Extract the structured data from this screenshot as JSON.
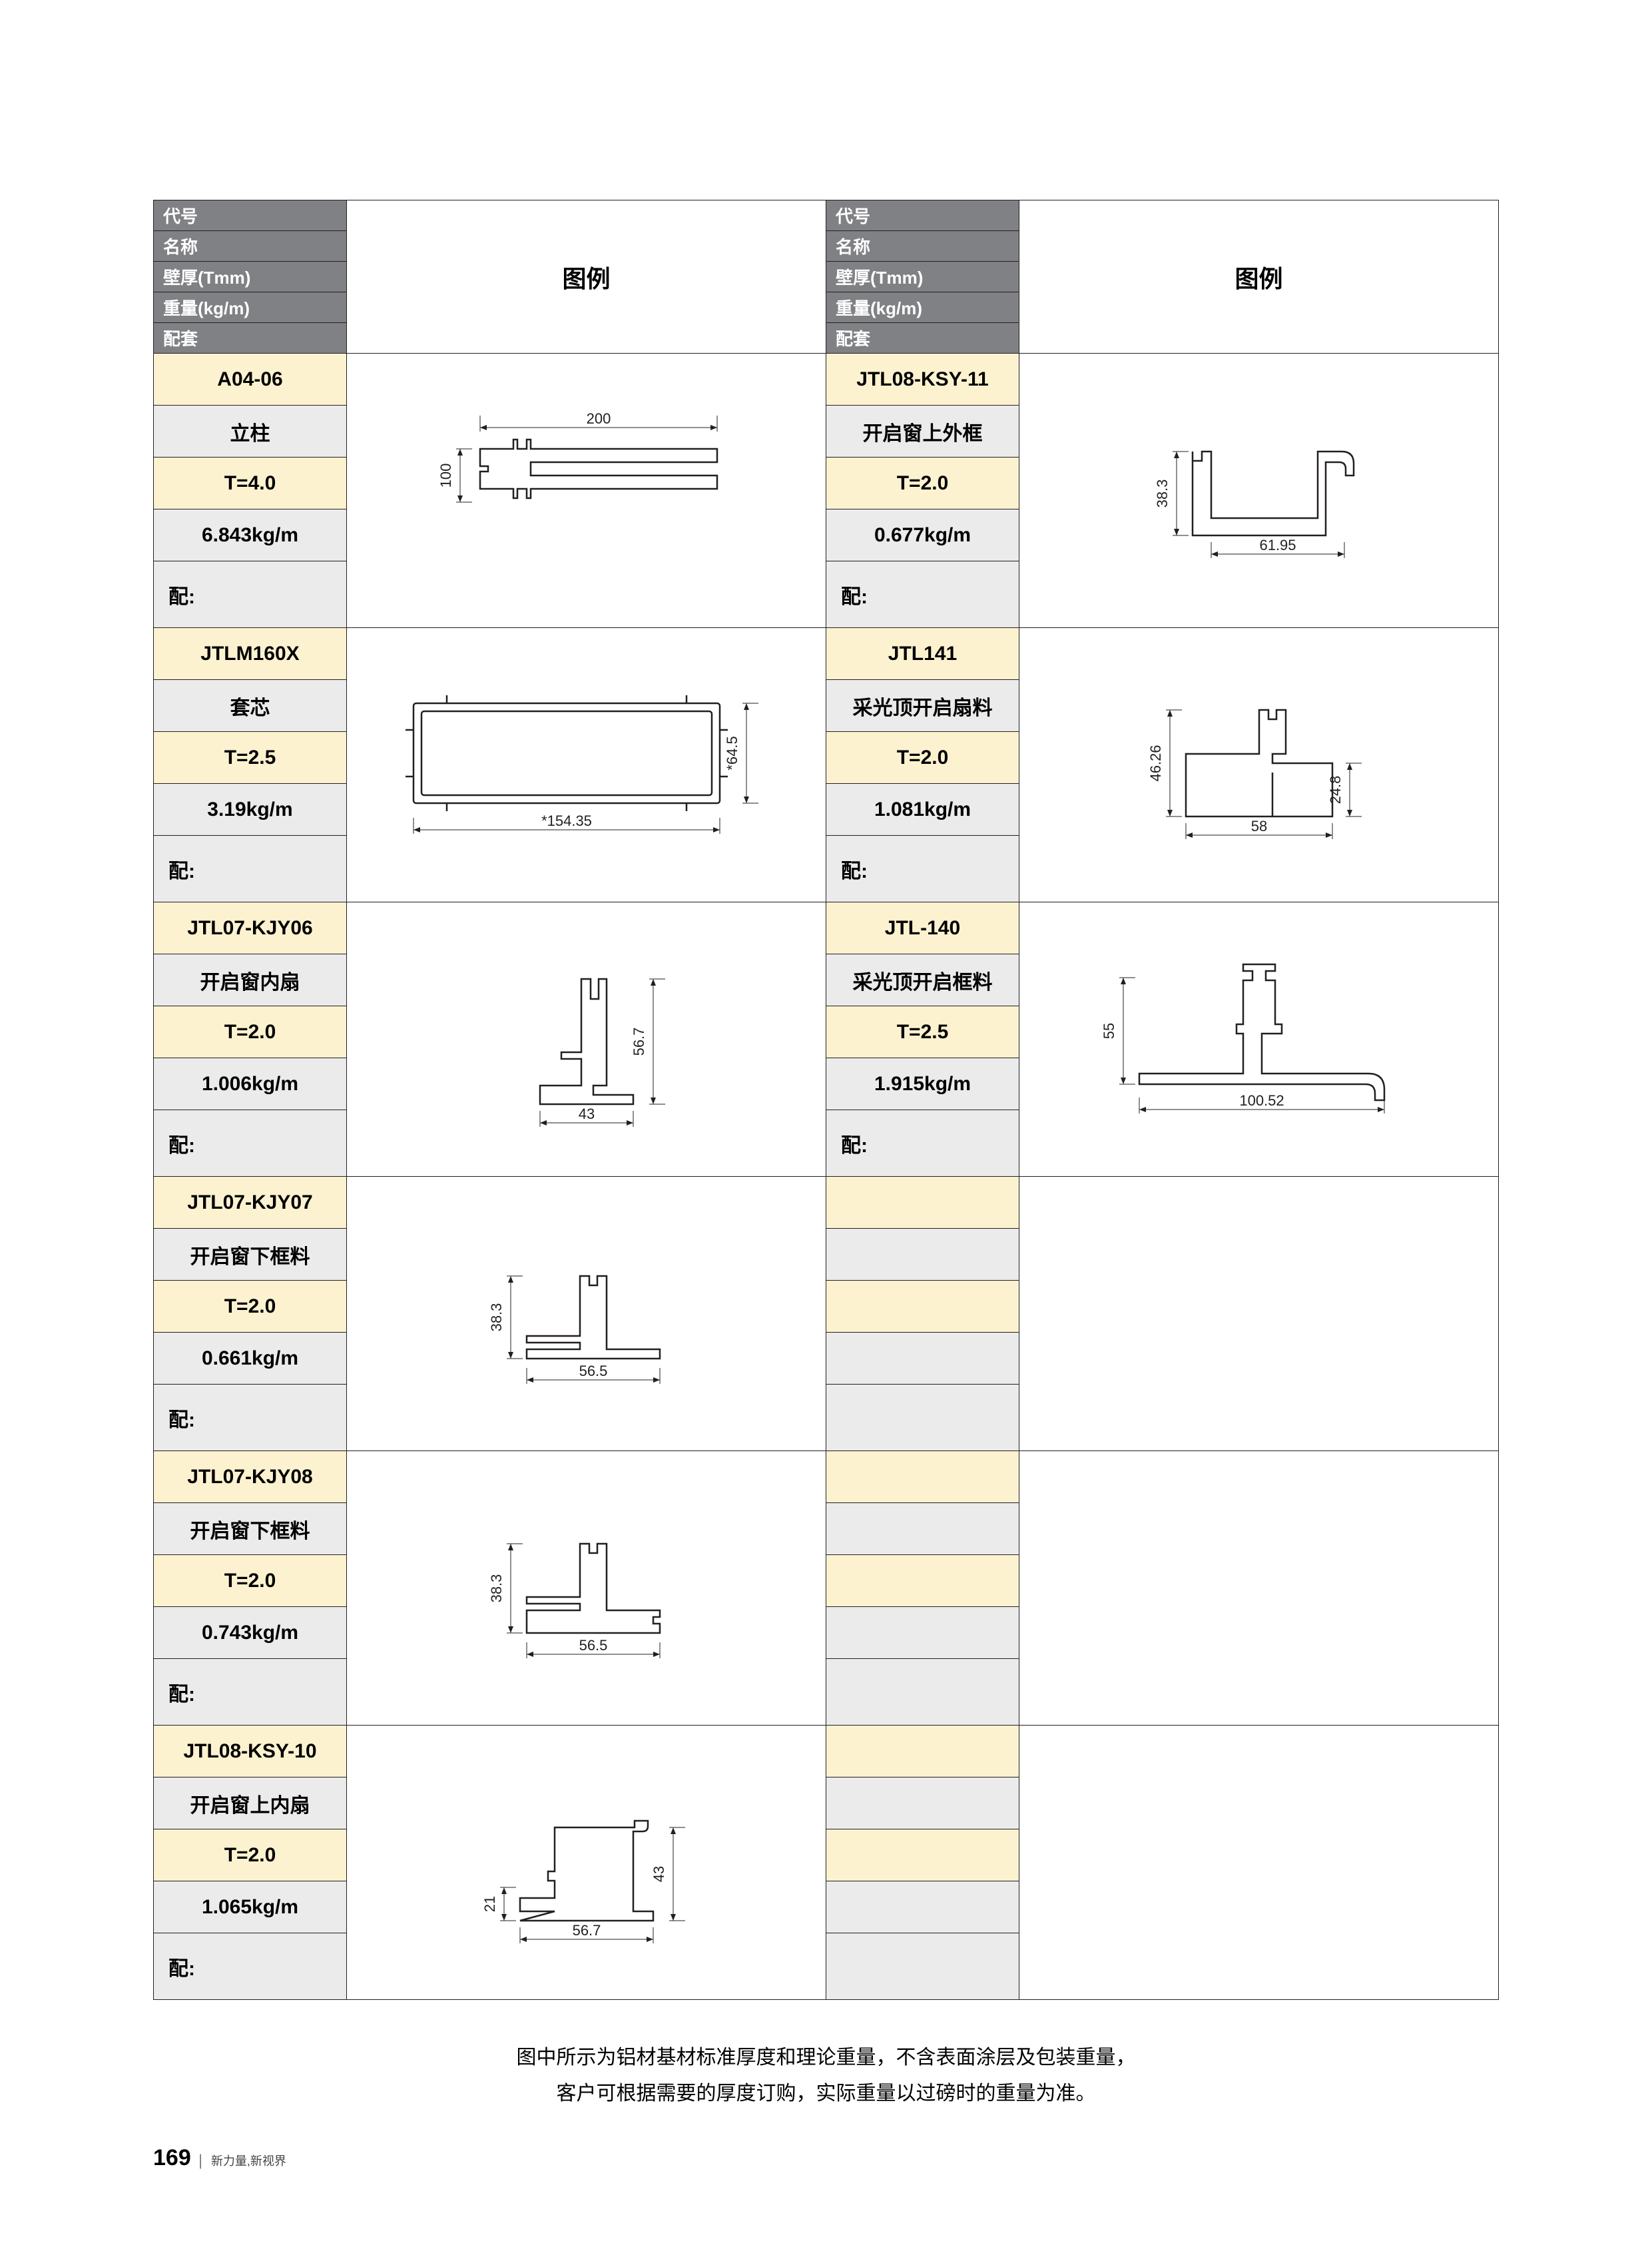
{
  "header_labels": {
    "code": "代号",
    "name": "名称",
    "thickness": "壁厚(Tmm)",
    "weight": "重量(kg/m)",
    "accessory": "配套",
    "legend": "图例"
  },
  "colors": {
    "header_bg": "#808184",
    "header_text": "#ffffff",
    "cream_bg": "#fcf2d0",
    "grey_bg": "#ebebeb",
    "border": "#231f20",
    "profile_stroke": "#231f20"
  },
  "left_rows": [
    {
      "code": "A04-06",
      "name": "立柱",
      "thickness": "T=4.0",
      "weight": "6.843kg/m",
      "accessory": "配:",
      "diagram": {
        "type": "T-post",
        "dim_w": "200",
        "dim_h": "100"
      }
    },
    {
      "code": "JTLM160X",
      "name": "套芯",
      "thickness": "T=2.5",
      "weight": "3.19kg/m",
      "accessory": "配:",
      "diagram": {
        "type": "rect-sleeve",
        "dim_w": "*154.35",
        "dim_h": "*64.5"
      }
    },
    {
      "code": "JTL07-KJY06",
      "name": "开启窗内扇",
      "thickness": "T=2.0",
      "weight": "1.006kg/m",
      "accessory": "配:",
      "diagram": {
        "type": "L-profile-a",
        "dim_w": "43",
        "dim_h": "56.7"
      }
    },
    {
      "code": "JTL07-KJY07",
      "name": "开启窗下框料",
      "thickness": "T=2.0",
      "weight": "0.661kg/m",
      "accessory": "配:",
      "diagram": {
        "type": "T-profile-a",
        "dim_w": "56.5",
        "dim_h": "38.3"
      }
    },
    {
      "code": "JTL07-KJY08",
      "name": "开启窗下框料",
      "thickness": "T=2.0",
      "weight": "0.743kg/m",
      "accessory": "配:",
      "diagram": {
        "type": "T-profile-b",
        "dim_w": "56.5",
        "dim_h": "38.3"
      }
    },
    {
      "code": "JTL08-KSY-10",
      "name": "开启窗上内扇",
      "thickness": "T=2.0",
      "weight": "1.065kg/m",
      "accessory": "配:",
      "diagram": {
        "type": "C-profile-a",
        "dim_w": "56.7",
        "dim_h": "43",
        "dim_h2": "21"
      }
    }
  ],
  "right_rows": [
    {
      "code": "JTL08-KSY-11",
      "name": "开启窗上外框",
      "thickness": "T=2.0",
      "weight": "0.677kg/m",
      "accessory": "配:",
      "diagram": {
        "type": "hook-profile",
        "dim_w": "61.95",
        "dim_h": "38.3"
      }
    },
    {
      "code": "JTL141",
      "name": "采光顶开启扇料",
      "thickness": "T=2.0",
      "weight": "1.081kg/m",
      "accessory": "配:",
      "diagram": {
        "type": "step-profile-a",
        "dim_w": "58",
        "dim_h": "46.26",
        "dim_h2": "24.8"
      }
    },
    {
      "code": "JTL-140",
      "name": "采光顶开启框料",
      "thickness": "T=2.5",
      "weight": "1.915kg/m",
      "accessory": "配:",
      "diagram": {
        "type": "step-profile-b",
        "dim_w": "100.52",
        "dim_h": "55"
      }
    },
    {
      "code": "",
      "name": "",
      "thickness": "",
      "weight": "",
      "accessory": "",
      "diagram": null
    },
    {
      "code": "",
      "name": "",
      "thickness": "",
      "weight": "",
      "accessory": "",
      "diagram": null
    },
    {
      "code": "",
      "name": "",
      "thickness": "",
      "weight": "",
      "accessory": "",
      "diagram": null
    }
  ],
  "footnote_line1": "图中所示为铝材基材标准厚度和理论重量，不含表面涂层及包装重量，",
  "footnote_line2": "客户可根据需要的厚度订购，实际重量以过磅时的重量为准。",
  "page_number": "169",
  "page_tagline": "新力量,新视界"
}
